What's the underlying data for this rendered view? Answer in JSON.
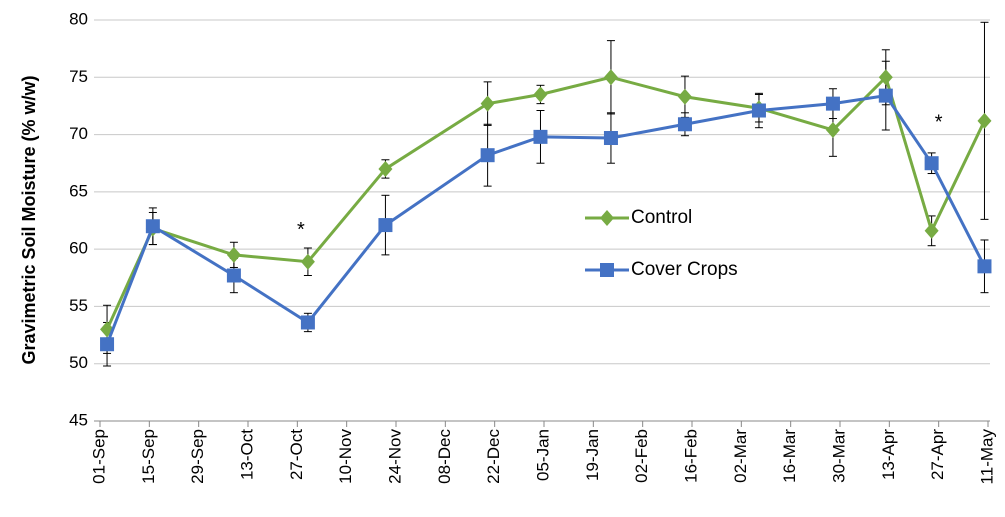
{
  "chart_data": {
    "type": "line",
    "y_label": "Gravimetric Soil Moisture (% w/w)",
    "x": [
      "03-Sep",
      "16-Sep",
      "09-Oct",
      "30-Oct",
      "21-Nov",
      "20-Dec",
      "04-Jan",
      "24-Jan",
      "14-Feb",
      "07-Mar",
      "28-Mar",
      "12-Apr",
      "25-Apr",
      "10-May"
    ],
    "series": [
      {
        "name": "Control",
        "color": "#77ab43",
        "marker": "diamond",
        "values": [
          53.0,
          61.8,
          59.5,
          58.9,
          67.0,
          72.7,
          73.5,
          75.0,
          73.3,
          72.3,
          70.4,
          75.0,
          61.6,
          71.2
        ],
        "errors": [
          2.1,
          1.4,
          1.1,
          1.2,
          0.8,
          1.9,
          0.8,
          3.2,
          1.8,
          1.2,
          2.3,
          2.4,
          1.3,
          8.6
        ]
      },
      {
        "name": "Cover Crops",
        "color": "#4472c4",
        "marker": "square",
        "values": [
          51.7,
          62.0,
          57.7,
          53.6,
          62.1,
          68.2,
          69.8,
          69.7,
          70.9,
          72.1,
          72.7,
          73.4,
          67.5,
          58.5
        ],
        "errors": [
          1.9,
          1.6,
          1.5,
          0.8,
          2.6,
          2.7,
          2.3,
          2.2,
          1.0,
          1.5,
          1.3,
          3.0,
          0.9,
          2.3
        ]
      }
    ],
    "annotations": [
      {
        "text": "*",
        "x": "28-Oct",
        "y": 61.6
      },
      {
        "text": "*",
        "x": "27-Apr",
        "y": 71.0
      }
    ],
    "xlim": [
      "01-Sep",
      "11-May"
    ],
    "xticks": [
      "01-Sep",
      "15-Sep",
      "29-Sep",
      "13-Oct",
      "27-Oct",
      "10-Nov",
      "24-Nov",
      "08-Dec",
      "22-Dec",
      "05-Jan",
      "19-Jan",
      "02-Feb",
      "16-Feb",
      "02-Mar",
      "16-Mar",
      "30-Mar",
      "13-Apr",
      "27-Apr",
      "11-May"
    ],
    "ylim": [
      45,
      80
    ],
    "yticks": [
      45,
      50,
      55,
      60,
      65,
      70,
      75,
      80
    ],
    "grid": true,
    "legend": "center"
  }
}
